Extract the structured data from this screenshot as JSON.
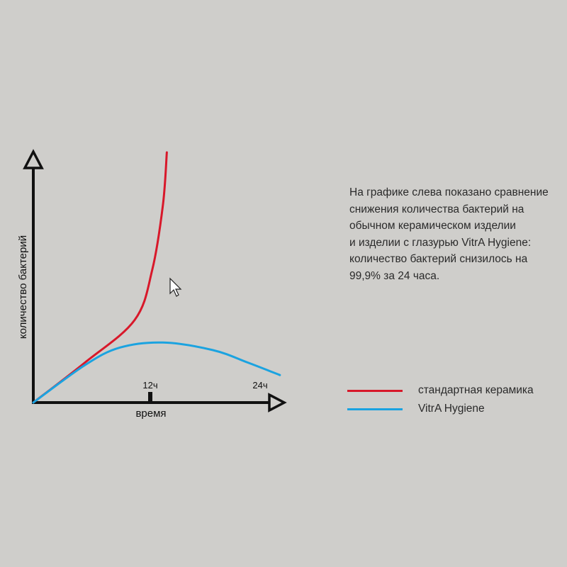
{
  "chart_data": {
    "type": "line",
    "title": "",
    "xlabel": "время",
    "ylabel": "количество бактерий",
    "x_unit": "hours",
    "xlim": [
      0,
      25.5
    ],
    "ylim": [
      0,
      100
    ],
    "x_ticks": [
      {
        "value": 12,
        "label": "12ч"
      },
      {
        "value": 24,
        "label": "24ч"
      }
    ],
    "y_ticks": [],
    "grid": false,
    "legend_position": "right",
    "series": [
      {
        "name": "стандартная керамика",
        "color": "#d8182a",
        "x": [
          0,
          5.3,
          10.4,
          12.2,
          13.3,
          13.7
        ],
        "y": [
          0,
          16,
          33,
          53,
          79,
          100
        ]
      },
      {
        "name": "VitrA Hygiene",
        "color": "#1ba3e0",
        "x": [
          0,
          5.3,
          8.9,
          13.3,
          18.4,
          22,
          25.3
        ],
        "y": [
          0,
          15,
          22,
          24,
          21,
          16,
          11
        ]
      }
    ]
  },
  "description": [
    "На графике слева показано сравнение",
    "снижения количества бактерий на",
    "обычном керамическом изделии",
    "и  изделии с глазурью VitrA Hygiene:",
    "количество бактерий снизилось на",
    "99,9% за  24  часа."
  ],
  "cursor_icon": "mouse-pointer-icon"
}
